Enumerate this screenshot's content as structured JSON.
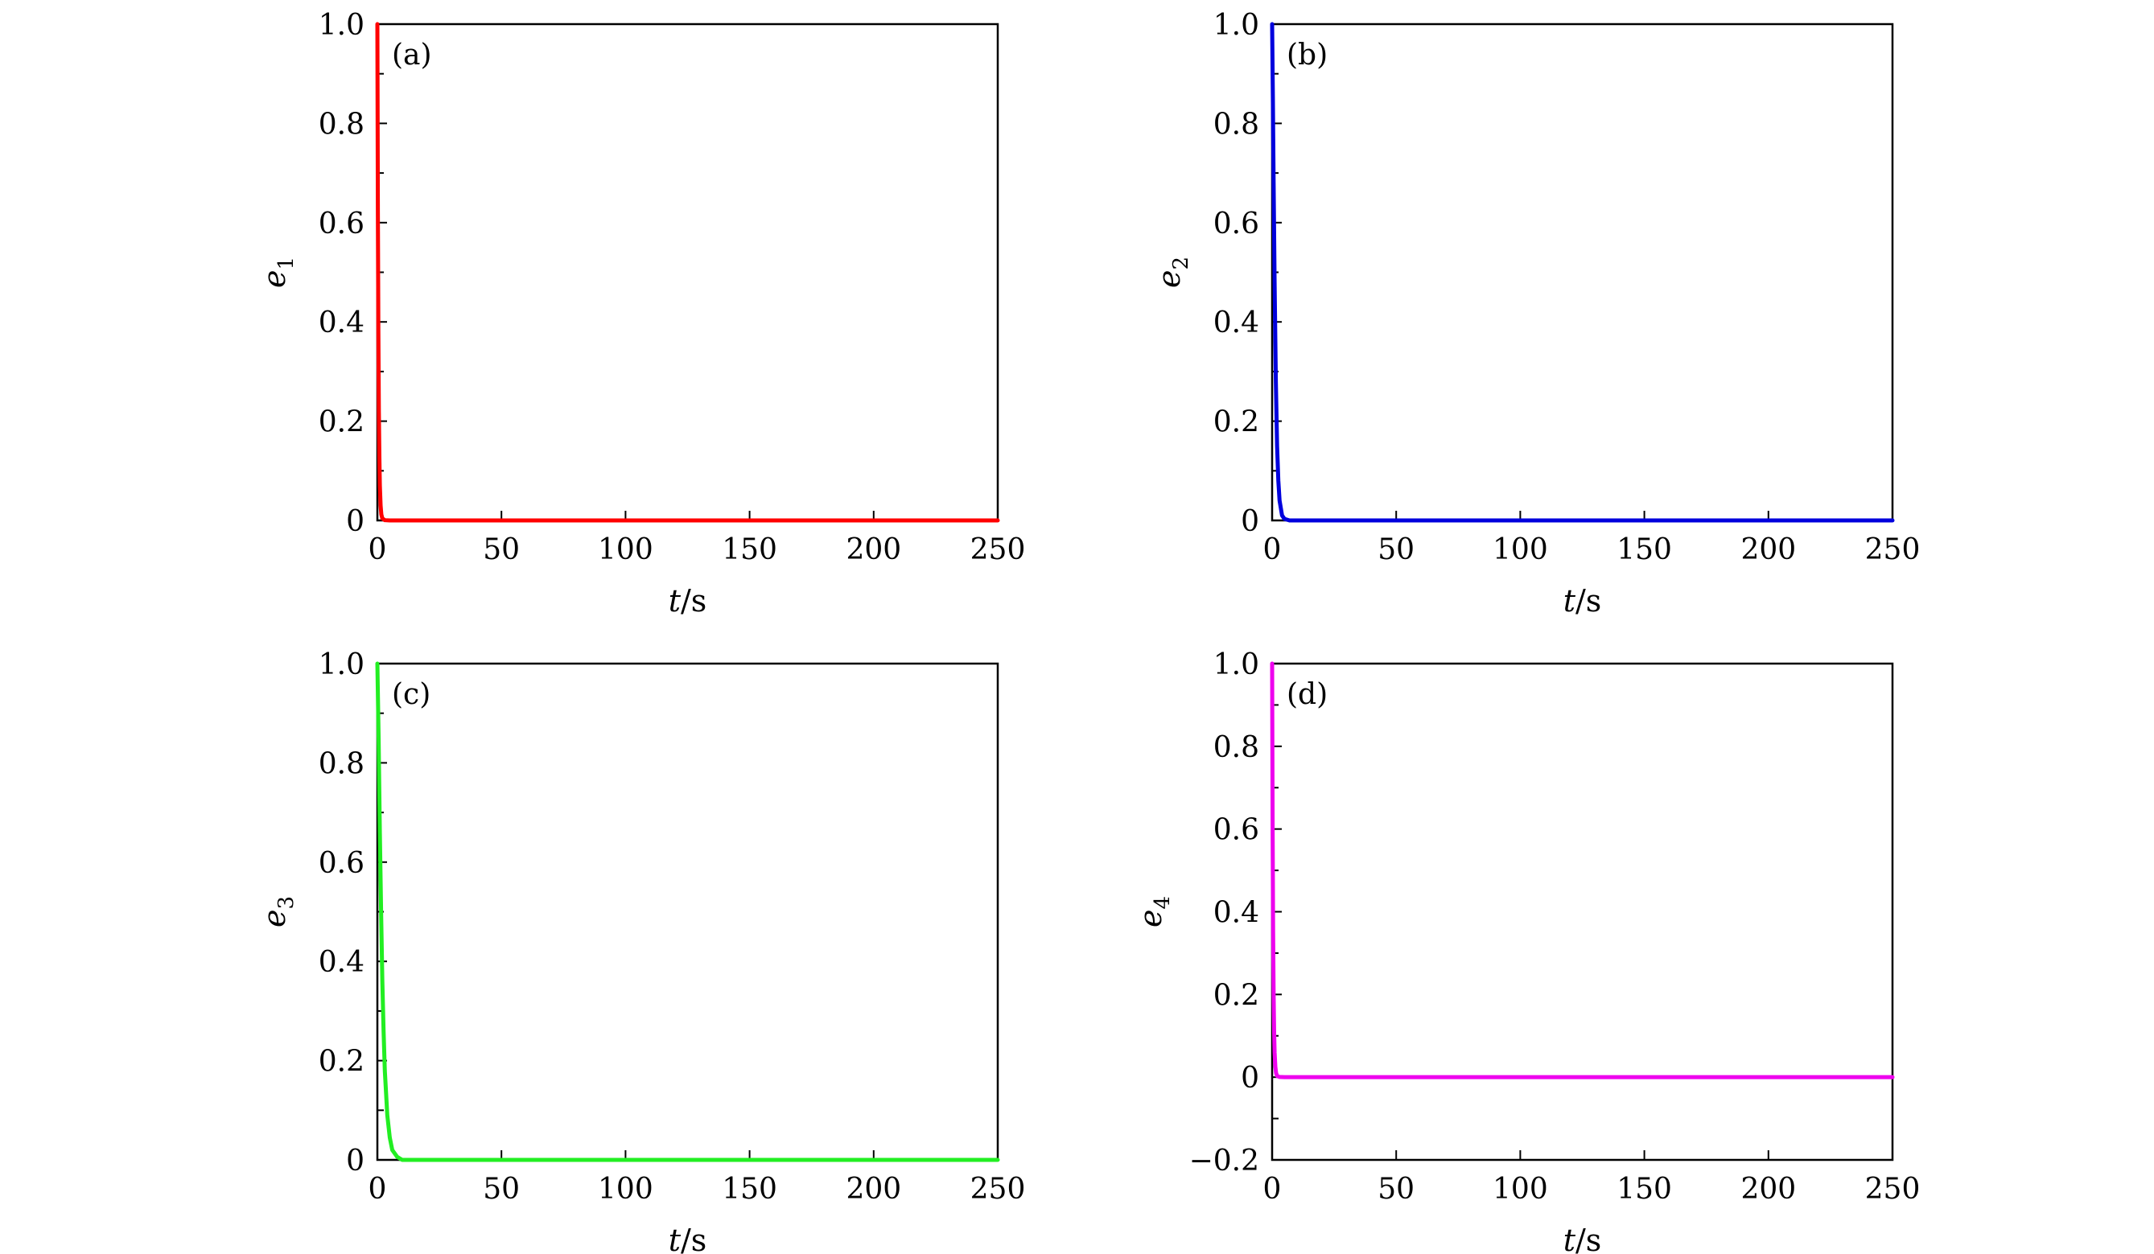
{
  "chart_data": [
    {
      "type": "line",
      "panel_label": "(a)",
      "xlabel": "t/s",
      "ylabel": "e",
      "ylabel_sub": "1",
      "xlim": [
        0,
        250
      ],
      "ylim": [
        0,
        1.0
      ],
      "x_ticks": [
        0,
        50,
        100,
        150,
        200,
        250
      ],
      "x_tick_labels": [
        "0",
        "50",
        "100",
        "150",
        "200",
        "250"
      ],
      "y_ticks": [
        0,
        0.2,
        0.4,
        0.6,
        0.8,
        1.0
      ],
      "y_tick_labels": [
        "0",
        "0.2",
        "0.4",
        "0.6",
        "0.8",
        "1.0"
      ],
      "y_minor_ticks": [
        0.1,
        0.3,
        0.5,
        0.7,
        0.9
      ],
      "series": [
        {
          "color": "#ff0000",
          "x": [
            0,
            0.2,
            0.4,
            0.6,
            0.8,
            1.0,
            1.3,
            1.6,
            2.0,
            3.0,
            5.0,
            250
          ],
          "y": [
            1.0,
            0.62,
            0.38,
            0.22,
            0.13,
            0.07,
            0.03,
            0.012,
            0.004,
            0.0005,
            0,
            0
          ]
        }
      ]
    },
    {
      "type": "line",
      "panel_label": "(b)",
      "xlabel": "t/s",
      "ylabel": "e",
      "ylabel_sub": "2",
      "xlim": [
        0,
        250
      ],
      "ylim": [
        0,
        1.0
      ],
      "x_ticks": [
        0,
        50,
        100,
        150,
        200,
        250
      ],
      "x_tick_labels": [
        "0",
        "50",
        "100",
        "150",
        "200",
        "250"
      ],
      "y_ticks": [
        0,
        0.2,
        0.4,
        0.6,
        0.8,
        1.0
      ],
      "y_tick_labels": [
        "0",
        "0.2",
        "0.4",
        "0.6",
        "0.8",
        "1.0"
      ],
      "y_minor_ticks": [
        0.1,
        0.3,
        0.5,
        0.7,
        0.9
      ],
      "series": [
        {
          "color": "#0000dd",
          "x": [
            0,
            0.3,
            0.6,
            1.0,
            1.5,
            2.0,
            2.5,
            3.0,
            4.0,
            5.0,
            7.0,
            250
          ],
          "y": [
            1.0,
            0.85,
            0.68,
            0.48,
            0.28,
            0.15,
            0.08,
            0.04,
            0.01,
            0.003,
            0,
            0
          ]
        }
      ]
    },
    {
      "type": "line",
      "panel_label": "(c)",
      "xlabel": "t/s",
      "ylabel": "e",
      "ylabel_sub": "3",
      "xlim": [
        0,
        250
      ],
      "ylim": [
        0,
        1.0
      ],
      "x_ticks": [
        0,
        50,
        100,
        150,
        200,
        250
      ],
      "x_tick_labels": [
        "0",
        "50",
        "100",
        "150",
        "200",
        "250"
      ],
      "y_ticks": [
        0,
        0.2,
        0.4,
        0.6,
        0.8,
        1.0
      ],
      "y_tick_labels": [
        "0",
        "0.2",
        "0.4",
        "0.6",
        "0.8",
        "1.0"
      ],
      "y_minor_ticks": [
        0.1,
        0.3,
        0.5,
        0.7,
        0.9
      ],
      "series": [
        {
          "color": "#22ee22",
          "x": [
            0,
            0.5,
            1.0,
            1.5,
            2.0,
            2.5,
            3.0,
            4.0,
            5.0,
            6.0,
            8.0,
            10.0,
            250
          ],
          "y": [
            1.0,
            0.85,
            0.66,
            0.5,
            0.36,
            0.26,
            0.18,
            0.09,
            0.045,
            0.02,
            0.006,
            0,
            0
          ]
        }
      ]
    },
    {
      "type": "line",
      "panel_label": "(d)",
      "xlabel": "t/s",
      "ylabel": "e",
      "ylabel_sub": "4",
      "xlim": [
        0,
        250
      ],
      "ylim": [
        -0.2,
        1.0
      ],
      "x_ticks": [
        0,
        50,
        100,
        150,
        200,
        250
      ],
      "x_tick_labels": [
        "0",
        "50",
        "100",
        "150",
        "200",
        "250"
      ],
      "y_ticks": [
        -0.2,
        0,
        0.2,
        0.4,
        0.6,
        0.8,
        1.0
      ],
      "y_tick_labels": [
        "−0.2",
        "0",
        "0.2",
        "0.4",
        "0.6",
        "0.8",
        "1.0"
      ],
      "y_minor_ticks": [
        -0.1,
        0.1,
        0.3,
        0.5,
        0.7,
        0.9
      ],
      "series": [
        {
          "color": "#ee00ee",
          "x": [
            0,
            0.2,
            0.4,
            0.6,
            0.8,
            1.0,
            1.3,
            1.6,
            2.0,
            3.0,
            5.0,
            250
          ],
          "y": [
            1.0,
            0.6,
            0.35,
            0.2,
            0.11,
            0.06,
            0.025,
            0.01,
            0.003,
            0.0005,
            0,
            0
          ]
        }
      ]
    }
  ]
}
